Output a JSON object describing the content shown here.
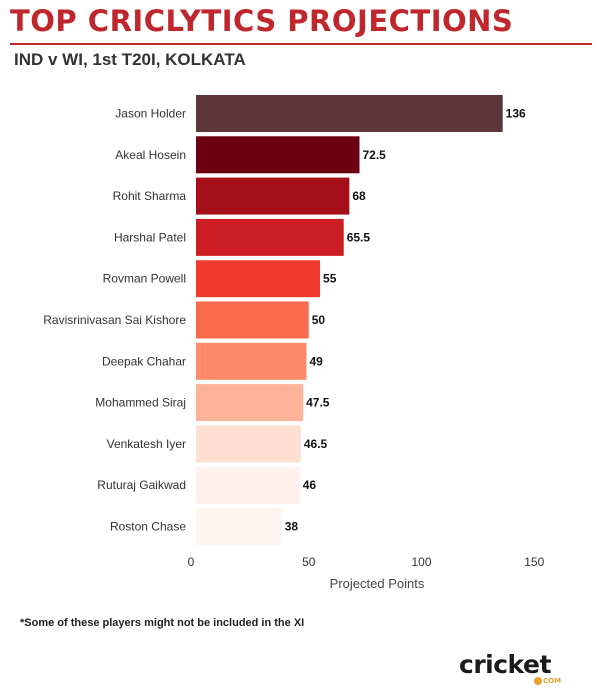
{
  "header": {
    "title": "TOP CRICLYTICS PROJECTIONS",
    "subtitle": "IND v WI, 1st T20I, KOLKATA"
  },
  "footnote": "*Some of these players might not be included in the XI",
  "logo": {
    "main": "cricket",
    "sub": "COM"
  },
  "colors": {
    "title": "#c0272d",
    "rule": "#c0272d",
    "logo_accent": "#e5a12a"
  },
  "chart_data": {
    "type": "bar",
    "orientation": "horizontal",
    "categories": [
      "Jason Holder",
      "Akeal Hosein",
      "Rohit Sharma",
      "Harshal Patel",
      "Rovman Powell",
      "Ravisrinivasan Sai Kishore",
      "Deepak Chahar",
      "Mohammed Siraj",
      "Venkatesh Iyer",
      "Ruturaj Gaikwad",
      "Roston Chase"
    ],
    "values": [
      136,
      72.5,
      68,
      65.5,
      55,
      50,
      49,
      47.5,
      46.5,
      46,
      38
    ],
    "value_labels": [
      "136",
      "72.5",
      "68",
      "65.5",
      "55",
      "50",
      "49",
      "47.5",
      "46.5",
      "46",
      "38"
    ],
    "colors": [
      "#5c3639",
      "#6b0011",
      "#a51018",
      "#cc1d23",
      "#ee3b2e",
      "#fb6a4c",
      "#fc8a6b",
      "#fcb399",
      "#fddfd1",
      "#fff2ec",
      "#fff5f0"
    ],
    "xlabel": "Projected Points",
    "ylabel": "",
    "xticks": [
      "0",
      "50",
      "100",
      "150"
    ],
    "xlim": [
      0,
      150
    ],
    "grid": false,
    "legend": "none"
  }
}
